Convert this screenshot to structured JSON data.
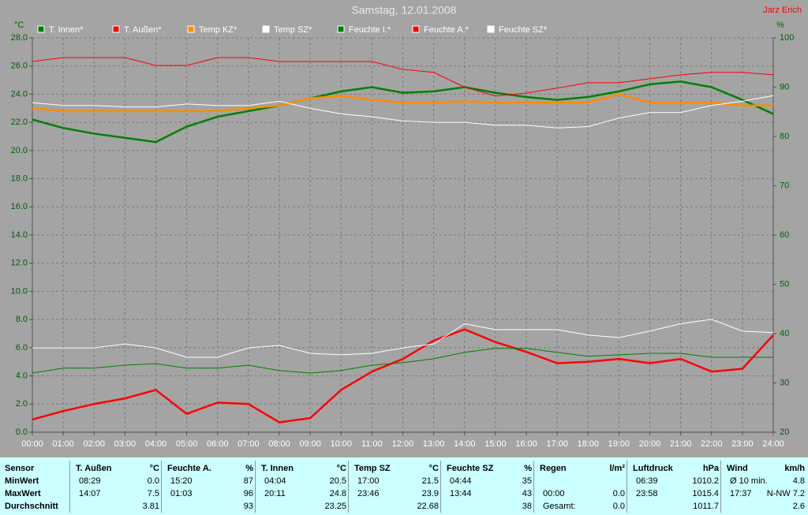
{
  "chart_data": {
    "type": "line",
    "title": "Samstag, 12.01.2008",
    "author": "Jarz Erich",
    "y_label": "°C",
    "y2_label": "%",
    "x": [
      0,
      1,
      2,
      3,
      4,
      5,
      6,
      7,
      8,
      9,
      10,
      11,
      12,
      13,
      14,
      15,
      16,
      17,
      18,
      19,
      20,
      21,
      22,
      23,
      24
    ],
    "xlim": [
      0,
      24
    ],
    "xticks": [
      {
        "value": 0,
        "label": "00:00"
      },
      {
        "value": 1,
        "label": "01:00"
      },
      {
        "value": 2,
        "label": "02:00"
      },
      {
        "value": 3,
        "label": "03:00"
      },
      {
        "value": 4,
        "label": "04:00"
      },
      {
        "value": 5,
        "label": "05:00"
      },
      {
        "value": 6,
        "label": "06:00"
      },
      {
        "value": 7,
        "label": "07:00"
      },
      {
        "value": 8,
        "label": "08:00"
      },
      {
        "value": 9,
        "label": "09:00"
      },
      {
        "value": 10,
        "label": "10:00"
      },
      {
        "value": 11,
        "label": "11:00"
      },
      {
        "value": 12,
        "label": "12:00"
      },
      {
        "value": 13,
        "label": "13:00"
      },
      {
        "value": 14,
        "label": "14:00"
      },
      {
        "value": 15,
        "label": "15:00"
      },
      {
        "value": 16,
        "label": "16:00"
      },
      {
        "value": 17,
        "label": "17:00"
      },
      {
        "value": 18,
        "label": "18:00"
      },
      {
        "value": 19,
        "label": "19:00"
      },
      {
        "value": 20,
        "label": "20:00"
      },
      {
        "value": 21,
        "label": "21:00"
      },
      {
        "value": 22,
        "label": "22:00"
      },
      {
        "value": 23,
        "label": "23:00"
      },
      {
        "value": 24,
        "label": "24:00"
      }
    ],
    "ylim": [
      0,
      28
    ],
    "yticks": [
      {
        "value": 0,
        "label": "0.0"
      },
      {
        "value": 2,
        "label": "2.0"
      },
      {
        "value": 4,
        "label": "4.0"
      },
      {
        "value": 6,
        "label": "6.0"
      },
      {
        "value": 8,
        "label": "8.0"
      },
      {
        "value": 10,
        "label": "10.0"
      },
      {
        "value": 12,
        "label": "12.0"
      },
      {
        "value": 14,
        "label": "14.0"
      },
      {
        "value": 16,
        "label": "16.0"
      },
      {
        "value": 18,
        "label": "18.0"
      },
      {
        "value": 20,
        "label": "20.0"
      },
      {
        "value": 22,
        "label": "22.0"
      },
      {
        "value": 24,
        "label": "24.0"
      },
      {
        "value": 26,
        "label": "26.0"
      },
      {
        "value": 28,
        "label": "28.0"
      }
    ],
    "y2lim": [
      20,
      100
    ],
    "y2ticks": [
      20,
      30,
      40,
      50,
      60,
      70,
      80,
      90,
      100
    ],
    "grid": true,
    "series": [
      {
        "name": "T. Innen*",
        "color": "#008000",
        "line_width": 2.5,
        "values": [
          22.2,
          21.6,
          21.2,
          20.9,
          20.6,
          21.7,
          22.4,
          22.8,
          23.2,
          23.7,
          24.2,
          24.5,
          24.1,
          24.2,
          24.5,
          24.1,
          23.8,
          23.6,
          23.8,
          24.2,
          24.7,
          24.9,
          24.5,
          23.6,
          22.6
        ]
      },
      {
        "name": "T. Außen*",
        "color": "#ff0000",
        "line_width": 2.5,
        "values": [
          0.9,
          1.5,
          2.0,
          2.4,
          3.0,
          1.3,
          2.1,
          2.0,
          0.7,
          1.0,
          3.0,
          4.3,
          5.2,
          6.5,
          7.3,
          6.4,
          5.7,
          4.9,
          5.0,
          5.2,
          4.9,
          5.2,
          4.3,
          4.5,
          6.9
        ]
      },
      {
        "name": "Temp KZ*",
        "color": "#ff8c00",
        "line_width": 2.5,
        "values": [
          23.0,
          22.8,
          22.8,
          22.8,
          22.8,
          22.8,
          22.8,
          23.0,
          23.2,
          23.7,
          23.9,
          23.6,
          23.4,
          23.4,
          23.5,
          23.4,
          23.4,
          23.4,
          23.4,
          24.0,
          23.4,
          23.4,
          23.4,
          23.2,
          23.2
        ]
      },
      {
        "name": "Temp SZ*",
        "color": "#ffffff",
        "line_width": 1,
        "values": [
          23.4,
          23.2,
          23.2,
          23.1,
          23.1,
          23.3,
          23.2,
          23.2,
          23.5,
          23.0,
          22.6,
          22.4,
          22.1,
          22.0,
          22.0,
          21.8,
          21.8,
          21.6,
          21.7,
          22.3,
          22.7,
          22.7,
          23.2,
          23.5,
          23.9
        ]
      },
      {
        "name": "Feuchte I.*",
        "color": "#008000",
        "line_width": 1,
        "axis": "y2",
        "values": [
          32.0,
          33.0,
          33.0,
          33.6,
          33.9,
          33.0,
          33.0,
          33.6,
          32.5,
          32.0,
          32.5,
          33.6,
          34.1,
          34.9,
          36.2,
          37.0,
          37.0,
          36.2,
          35.4,
          35.7,
          36.0,
          36.0,
          35.2,
          35.2,
          35.2
        ]
      },
      {
        "name": "Feuchte A.*",
        "color": "#ff0000",
        "line_width": 1,
        "axis": "y2",
        "values": [
          95.2,
          96.0,
          96.0,
          96.0,
          94.4,
          94.4,
          96.0,
          96.0,
          95.2,
          95.2,
          95.2,
          95.2,
          93.6,
          93.0,
          90.0,
          88.2,
          88.8,
          89.8,
          90.9,
          90.9,
          91.7,
          92.5,
          93.0,
          93.0,
          92.5
        ]
      },
      {
        "name": "Feuchte SZ*",
        "color": "#ffffff",
        "line_width": 1,
        "axis": "y2",
        "values": [
          37.1,
          37.1,
          37.1,
          37.9,
          37.1,
          35.2,
          35.2,
          37.1,
          37.6,
          36.0,
          35.7,
          36.0,
          37.1,
          37.9,
          42.0,
          40.8,
          40.8,
          40.8,
          39.7,
          39.2,
          40.5,
          42.0,
          42.9,
          40.5,
          40.2
        ]
      }
    ]
  },
  "table": {
    "header": "Sensor",
    "columns": [
      {
        "name": "T. Außen",
        "unit": "°C"
      },
      {
        "name": "Feuchte A.",
        "unit": "%"
      },
      {
        "name": "T. Innen",
        "unit": "°C"
      },
      {
        "name": "Temp SZ",
        "unit": "°C"
      },
      {
        "name": "Feuchte SZ",
        "unit": "%"
      },
      {
        "name": "Regen",
        "unit": "l/m²"
      },
      {
        "name": "Luftdruck",
        "unit": "hPa"
      },
      {
        "name": "Wind",
        "unit": "km/h"
      }
    ],
    "rows": [
      {
        "label": "MinWert",
        "cells": [
          [
            "08:29",
            "0.0"
          ],
          [
            "15:20",
            "87"
          ],
          [
            "04:04",
            "20.5"
          ],
          [
            "17:00",
            "21.5"
          ],
          [
            "04:44",
            "35"
          ],
          [
            null,
            null
          ],
          [
            "06:39",
            "1010.2"
          ],
          [
            "Ø 10 min.",
            "4.8"
          ]
        ]
      },
      {
        "label": "MaxWert",
        "cells": [
          [
            "14:07",
            "7.5"
          ],
          [
            "01:03",
            "96"
          ],
          [
            "20:11",
            "24.8"
          ],
          [
            "23:46",
            "23.9"
          ],
          [
            "13:44",
            "43"
          ],
          [
            "00:00",
            "0.0"
          ],
          [
            "23:58",
            "1015.4"
          ],
          [
            "17:37",
            "N-NW 7.2"
          ]
        ]
      },
      {
        "label": "Durchschnitt",
        "cells": [
          [
            null,
            "3.81"
          ],
          [
            null,
            "93"
          ],
          [
            null,
            "23.25"
          ],
          [
            null,
            "22.68"
          ],
          [
            null,
            "38"
          ],
          [
            "Gesamt:",
            "0.0"
          ],
          [
            null,
            "1011.7"
          ],
          [
            null,
            "2.6"
          ]
        ]
      }
    ]
  }
}
